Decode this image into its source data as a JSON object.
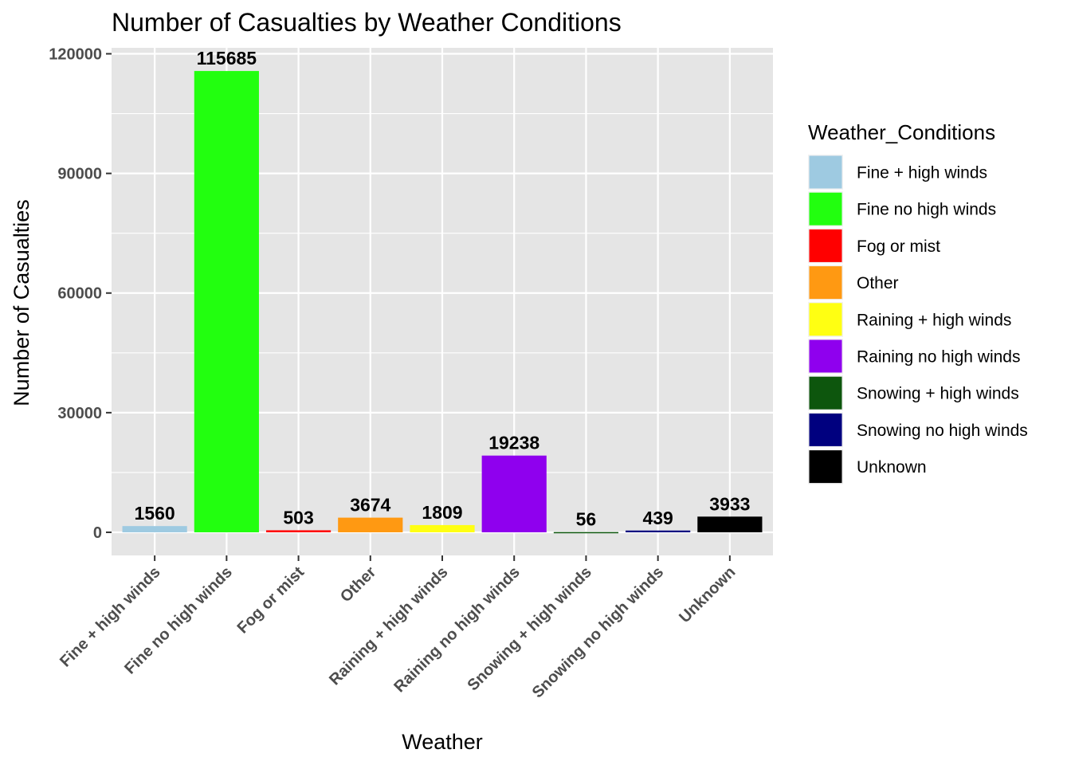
{
  "chart_data": {
    "type": "bar",
    "title": "Number of Casualties by Weather Conditions",
    "xlabel": "Weather",
    "ylabel": "Number of Casualties",
    "categories": [
      "Fine + high winds",
      "Fine no high winds",
      "Fog or mist",
      "Other",
      "Raining + high winds",
      "Raining no high winds",
      "Snowing + high winds",
      "Snowing no high winds",
      "Unknown"
    ],
    "values": [
      1560,
      115685,
      503,
      3674,
      1809,
      19238,
      56,
      439,
      3933
    ],
    "data_labels": [
      "1560",
      "115685",
      "503",
      "3674",
      "1809",
      "19238",
      "56",
      "439",
      "3933"
    ],
    "colors": [
      "#9ecae1",
      "#22ff0f",
      "#ff0000",
      "#ff9912",
      "#ffff12",
      "#8f00ee",
      "#0d560d",
      "#00007f",
      "#000000"
    ],
    "ylim": [
      -5800,
      121500
    ],
    "yticks": [
      0,
      30000,
      60000,
      90000,
      120000
    ],
    "ytick_labels": [
      "0",
      "30000",
      "60000",
      "90000",
      "120000"
    ],
    "grid": true,
    "legend": {
      "title": "Weather_Conditions",
      "position": "right",
      "entries": [
        "Fine + high winds",
        "Fine no high winds",
        "Fog or mist",
        "Other",
        "Raining + high winds",
        "Raining no high winds",
        "Snowing + high winds",
        "Snowing no high winds",
        "Unknown"
      ]
    },
    "panel_background": "#e5e5e5",
    "grid_color": "#ffffff"
  }
}
